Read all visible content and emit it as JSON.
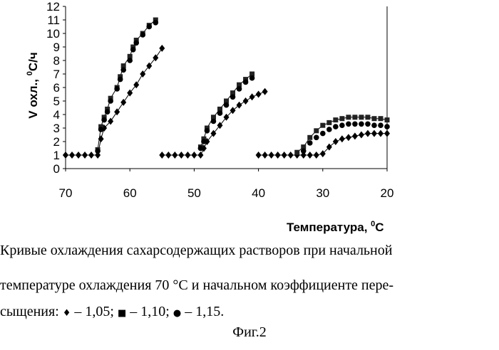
{
  "chart_data": {
    "type": "scatter",
    "ylabel_main": "V охл., ",
    "ylabel_sup": "0",
    "ylabel_unit": "C/ч",
    "xlabel_main": "Температура, ",
    "xlabel_sup": "0",
    "xlabel_unit": "C",
    "xlim": [
      70,
      20
    ],
    "ylim": [
      0,
      12
    ],
    "xticks": [
      "70",
      "60",
      "50",
      "40",
      "30",
      "20"
    ],
    "yticks": [
      "0",
      "1",
      "2",
      "3",
      "4",
      "5",
      "6",
      "7",
      "8",
      "9",
      "10",
      "11",
      "12"
    ],
    "grid": false,
    "series": [
      {
        "marker": "diamond",
        "line": true,
        "segments": [
          [
            [
              70,
              1
            ],
            [
              69,
              1
            ],
            [
              68,
              1
            ],
            [
              67,
              1
            ],
            [
              66,
              1
            ],
            [
              65,
              1
            ],
            [
              64.5,
              2.2
            ],
            [
              64,
              3
            ],
            [
              63,
              3.5
            ],
            [
              62,
              4.2
            ],
            [
              61,
              4.9
            ],
            [
              60,
              5.6
            ],
            [
              59,
              6.2
            ],
            [
              58,
              7
            ],
            [
              57,
              7.6
            ],
            [
              56,
              8.2
            ],
            [
              55,
              8.9
            ]
          ],
          [
            [
              55,
              1
            ],
            [
              54,
              1
            ],
            [
              53,
              1
            ],
            [
              52,
              1
            ],
            [
              51,
              1
            ],
            [
              50,
              1
            ],
            [
              49,
              1
            ],
            [
              48.5,
              1.5
            ],
            [
              48,
              2
            ],
            [
              47,
              2.6
            ],
            [
              46,
              3.2
            ],
            [
              45,
              3.8
            ],
            [
              44,
              4.3
            ],
            [
              43,
              4.7
            ],
            [
              42,
              5
            ],
            [
              41,
              5.3
            ],
            [
              40,
              5.5
            ],
            [
              39,
              5.7
            ]
          ],
          [
            [
              40,
              1
            ],
            [
              39,
              1
            ],
            [
              38,
              1
            ],
            [
              37,
              1
            ],
            [
              36,
              1
            ],
            [
              35,
              1
            ],
            [
              34,
              1
            ],
            [
              33,
              1
            ],
            [
              32,
              1
            ],
            [
              31,
              1
            ],
            [
              30,
              1.1
            ],
            [
              29,
              1.6
            ],
            [
              28,
              2
            ],
            [
              27,
              2.2
            ],
            [
              26,
              2.3
            ],
            [
              25,
              2.4
            ],
            [
              24,
              2.5
            ],
            [
              23,
              2.6
            ],
            [
              22,
              2.6
            ],
            [
              21,
              2.6
            ],
            [
              20,
              2.6
            ]
          ]
        ]
      },
      {
        "marker": "square",
        "line": true,
        "segments": [
          [
            [
              65,
              1.4
            ],
            [
              64.5,
              3.1
            ],
            [
              64,
              3.8
            ],
            [
              63.5,
              4.4
            ],
            [
              63,
              5.2
            ],
            [
              62,
              6
            ],
            [
              61.5,
              6.8
            ],
            [
              61,
              7.6
            ],
            [
              60,
              8.3
            ],
            [
              59.5,
              9
            ],
            [
              59,
              9.5
            ],
            [
              58,
              10
            ],
            [
              57,
              10.6
            ],
            [
              56,
              11
            ]
          ],
          [
            [
              49,
              1.6
            ],
            [
              48.5,
              2.2
            ],
            [
              48,
              3
            ],
            [
              47,
              3.8
            ],
            [
              46,
              4.4
            ],
            [
              45,
              5
            ],
            [
              44,
              5.6
            ],
            [
              43,
              6.2
            ],
            [
              42,
              6.6
            ],
            [
              41,
              7
            ]
          ],
          [
            [
              34,
              1.2
            ],
            [
              33,
              1.6
            ],
            [
              32,
              2.3
            ],
            [
              31,
              2.8
            ],
            [
              30,
              3.2
            ],
            [
              29,
              3.4
            ],
            [
              28,
              3.6
            ],
            [
              27,
              3.7
            ],
            [
              26,
              3.8
            ],
            [
              25,
              3.8
            ],
            [
              24,
              3.8
            ],
            [
              23,
              3.8
            ],
            [
              22,
              3.7
            ],
            [
              21,
              3.7
            ],
            [
              20,
              3.6
            ]
          ]
        ]
      },
      {
        "marker": "circle",
        "line": false,
        "segments": [
          [
            [
              65,
              1.3
            ],
            [
              64.5,
              2.9
            ],
            [
              64,
              3.6
            ],
            [
              63.5,
              4.2
            ],
            [
              63,
              5
            ],
            [
              62,
              5.9
            ],
            [
              61.5,
              6.6
            ],
            [
              61,
              7.3
            ],
            [
              60,
              8
            ],
            [
              59.5,
              8.8
            ],
            [
              59,
              9.3
            ],
            [
              58,
              9.9
            ],
            [
              57,
              10.5
            ],
            [
              56,
              10.8
            ]
          ],
          [
            [
              49,
              1.5
            ],
            [
              48.5,
              2
            ],
            [
              48,
              2.8
            ],
            [
              47,
              3.5
            ],
            [
              46,
              4.1
            ],
            [
              45,
              4.7
            ],
            [
              44,
              5.3
            ],
            [
              43,
              5.9
            ],
            [
              42,
              6.4
            ],
            [
              41,
              6.7
            ]
          ],
          [
            [
              33,
              1.3
            ],
            [
              32,
              1.9
            ],
            [
              31,
              2.3
            ],
            [
              30,
              2.6
            ],
            [
              29,
              2.9
            ],
            [
              28,
              3.1
            ],
            [
              27,
              3.2
            ],
            [
              26,
              3.3
            ],
            [
              25,
              3.3
            ],
            [
              24,
              3.3
            ],
            [
              23,
              3.3
            ],
            [
              22,
              3.2
            ],
            [
              21,
              3.2
            ],
            [
              20,
              3.1
            ]
          ]
        ]
      }
    ]
  },
  "caption": {
    "line1": "Кривые охлаждения сахарсодержащих растворов при начальной",
    "line2": "температуре охлаждения 70 °С и начальном коэффициенте пере-",
    "line3_prefix": "сыщения: ",
    "legend": [
      {
        "marker": "♦",
        "text": " – 1,05;  "
      },
      {
        "marker": "■",
        "text": " – 1,10;  "
      },
      {
        "marker": "●",
        "text": " – 1,15."
      }
    ],
    "figure_label": "Фиг.2"
  }
}
